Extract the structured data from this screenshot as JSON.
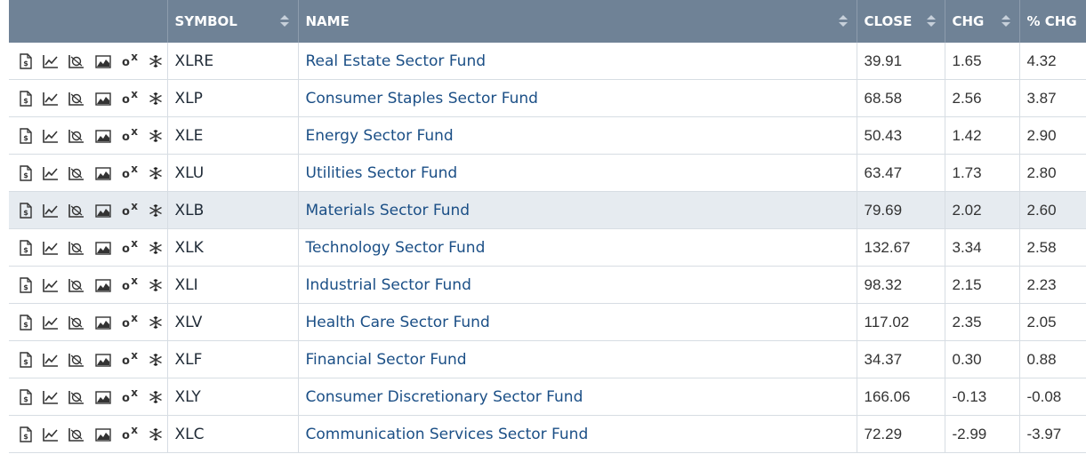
{
  "headers": {
    "symbol": "SYMBOL",
    "name": "NAME",
    "close": "CLOSE",
    "chg": "CHG",
    "pct_chg": "% CHG"
  },
  "icons": [
    "profile-icon",
    "line-chart-icon",
    "seasonality-chart-icon",
    "area-chart-icon",
    "point-figure-icon",
    "snowflake-icon"
  ],
  "ox_labels": {
    "o": "o",
    "x": "x"
  },
  "rows": [
    {
      "symbol": "XLRE",
      "name": "Real Estate Sector Fund",
      "close": "39.91",
      "chg": "1.65",
      "pct": "4.32"
    },
    {
      "symbol": "XLP",
      "name": "Consumer Staples Sector Fund",
      "close": "68.58",
      "chg": "2.56",
      "pct": "3.87"
    },
    {
      "symbol": "XLE",
      "name": "Energy Sector Fund",
      "close": "50.43",
      "chg": "1.42",
      "pct": "2.90"
    },
    {
      "symbol": "XLU",
      "name": "Utilities Sector Fund",
      "close": "63.47",
      "chg": "1.73",
      "pct": "2.80"
    },
    {
      "symbol": "XLB",
      "name": "Materials Sector Fund",
      "close": "79.69",
      "chg": "2.02",
      "pct": "2.60"
    },
    {
      "symbol": "XLK",
      "name": "Technology Sector Fund",
      "close": "132.67",
      "chg": "3.34",
      "pct": "2.58"
    },
    {
      "symbol": "XLI",
      "name": "Industrial Sector Fund",
      "close": "98.32",
      "chg": "2.15",
      "pct": "2.23"
    },
    {
      "symbol": "XLV",
      "name": "Health Care Sector Fund",
      "close": "117.02",
      "chg": "2.35",
      "pct": "2.05"
    },
    {
      "symbol": "XLF",
      "name": "Financial Sector Fund",
      "close": "34.37",
      "chg": "0.30",
      "pct": "0.88"
    },
    {
      "symbol": "XLY",
      "name": "Consumer Discretionary Sector Fund",
      "close": "166.06",
      "chg": "-0.13",
      "pct": "-0.08"
    },
    {
      "symbol": "XLC",
      "name": "Communication Services Sector Fund",
      "close": "72.29",
      "chg": "-2.99",
      "pct": "-3.97"
    }
  ],
  "highlighted_row": 4
}
